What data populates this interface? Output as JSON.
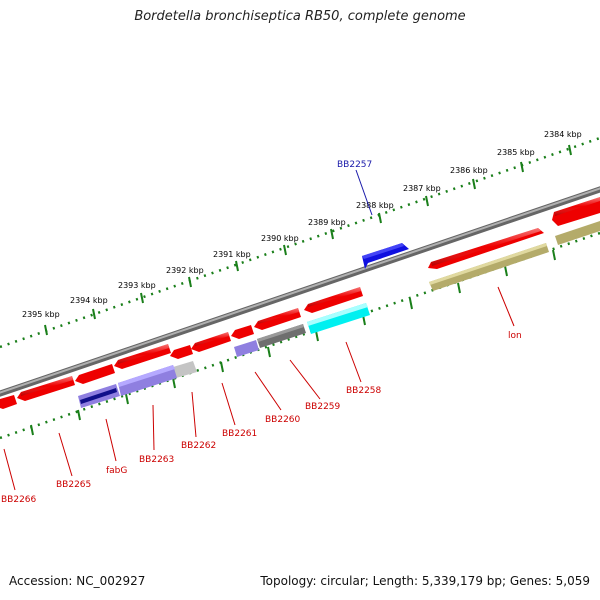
{
  "title": "Bordetella bronchiseptica RB50, complete genome",
  "footer": {
    "accession": "Accession: NC_002927",
    "summary": "Topology: circular; Length: 5,339,179 bp; Genes: 5,059"
  },
  "ruler": {
    "ticks": [
      "2384 kbp",
      "2385 kbp",
      "2386 kbp",
      "2387 kbp",
      "2388 kbp",
      "2389 kbp",
      "2390 kbp",
      "2391 kbp",
      "2392 kbp",
      "2393 kbp",
      "2394 kbp",
      "2395 kbp"
    ],
    "color": "#1a7f1a"
  },
  "genes": {
    "forward": [
      "BB2257"
    ],
    "reverse": [
      "lon",
      "BB2258",
      "BB2259",
      "BB2260",
      "BB2261",
      "BB2262",
      "BB2263",
      "fabG",
      "BB2265",
      "BB2266"
    ]
  },
  "colors": {
    "cds": "#ee0000",
    "forward_gene": "#1010e0",
    "forward_label": "#1a1aaa",
    "reverse_label": "#cc0000",
    "backbone": "#808080",
    "olive": "#b4ab6a",
    "cyan": "#00f0f0",
    "violet": "#8f7fe0",
    "grey": "#6e6e6e",
    "light_grey": "#c4c4c4",
    "navy": "#10108a"
  }
}
